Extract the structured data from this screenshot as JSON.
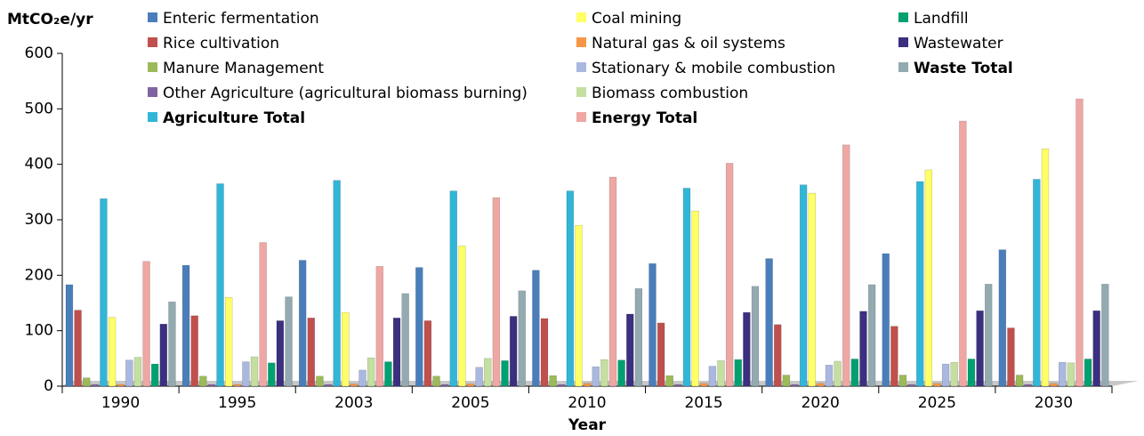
{
  "chart_data": {
    "type": "bar",
    "y_label": "MtCO₂e/yr",
    "x_label": "Year",
    "categories": [
      "1990",
      "1995",
      "2003",
      "2005",
      "2010",
      "2015",
      "2020",
      "2025",
      "2030"
    ],
    "series": [
      {
        "name": "Enteric fermentation",
        "color": "#4a7ebb",
        "values": [
          183,
          218,
          227,
          214,
          209,
          221,
          230,
          239,
          246
        ]
      },
      {
        "name": "Rice cultivation",
        "color": "#c0504d",
        "values": [
          137,
          127,
          123,
          118,
          122,
          114,
          111,
          108,
          105
        ]
      },
      {
        "name": "Manure Management",
        "color": "#9bbb59",
        "values": [
          15,
          18,
          18,
          18,
          19,
          19,
          20,
          20,
          20
        ]
      },
      {
        "name": "Other Agriculture (agricultural biomass burning)",
        "color": "#8064a2",
        "values": [
          3,
          3,
          3,
          3,
          3,
          3,
          3,
          3,
          3
        ]
      },
      {
        "name": "Agriculture Total",
        "color": "#31b6d8",
        "values": [
          338,
          365,
          371,
          352,
          352,
          357,
          363,
          369,
          373
        ]
      },
      {
        "name": "Coal mining",
        "color": "#ffff66",
        "values": [
          124,
          160,
          133,
          253,
          290,
          316,
          348,
          390,
          428
        ]
      },
      {
        "name": "Natural gas & oil systems",
        "color": "#f79646",
        "values": [
          3,
          3,
          4,
          4,
          5,
          5,
          5,
          5,
          5
        ]
      },
      {
        "name": "Stationary & mobile combustion",
        "color": "#aab8e0",
        "values": [
          47,
          44,
          29,
          34,
          35,
          36,
          38,
          40,
          43
        ]
      },
      {
        "name": "Biomass combustion",
        "color": "#c4dfa0",
        "values": [
          52,
          53,
          51,
          50,
          48,
          46,
          45,
          43,
          42
        ]
      },
      {
        "name": "Energy Total",
        "color": "#eea7a3",
        "values": [
          225,
          259,
          216,
          340,
          377,
          402,
          435,
          478,
          518
        ]
      },
      {
        "name": "Landfill",
        "color": "#00a070",
        "values": [
          40,
          42,
          44,
          46,
          47,
          48,
          49,
          49,
          49
        ]
      },
      {
        "name": "Wastewater",
        "color": "#3b2f7f",
        "values": [
          112,
          118,
          123,
          126,
          130,
          133,
          135,
          136,
          136
        ]
      },
      {
        "name": "Waste Total",
        "color": "#93aab0",
        "values": [
          152,
          161,
          167,
          172,
          176,
          180,
          183,
          184,
          184
        ]
      }
    ],
    "ylim": [
      0,
      600
    ],
    "yticks": [
      0,
      100,
      200,
      300,
      400,
      500,
      600
    ]
  }
}
